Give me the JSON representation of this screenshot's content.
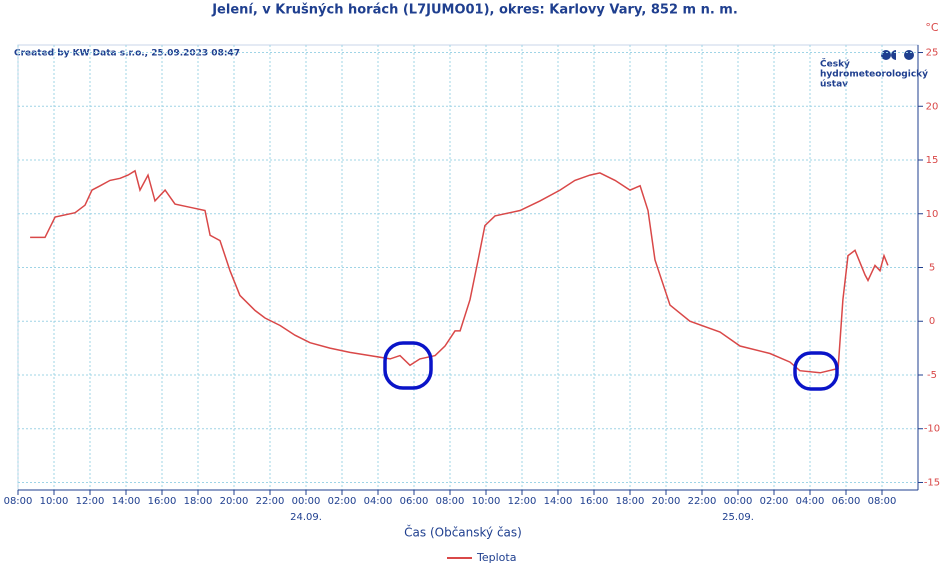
{
  "chart_data": {
    "type": "line",
    "title": "Jelení, v Krušných horách (L7JUMO01), okres: Karlovy Vary, 852 m n. m.",
    "y_unit": "°C",
    "created_by": "Created by KW Data s.r.o., 25.09.2023 08:47",
    "logo_lines": [
      "Český",
      "hydrometeorologický",
      "ústav"
    ],
    "x_label": "Čas (Občanský čas)",
    "xlim": [
      0,
      50
    ],
    "xticks": [
      {
        "value": 0,
        "label": "08:00"
      },
      {
        "value": 2,
        "label": "10:00"
      },
      {
        "value": 4,
        "label": "12:00"
      },
      {
        "value": 6,
        "label": "14:00"
      },
      {
        "value": 8,
        "label": "16:00"
      },
      {
        "value": 10,
        "label": "18:00"
      },
      {
        "value": 12,
        "label": "20:00"
      },
      {
        "value": 14,
        "label": "22:00"
      },
      {
        "value": 16,
        "label": "00:00"
      },
      {
        "value": 18,
        "label": "02:00"
      },
      {
        "value": 20,
        "label": "04:00"
      },
      {
        "value": 22,
        "label": "06:00"
      },
      {
        "value": 24,
        "label": "08:00"
      },
      {
        "value": 26,
        "label": "10:00"
      },
      {
        "value": 28,
        "label": "12:00"
      },
      {
        "value": 30,
        "label": "14:00"
      },
      {
        "value": 32,
        "label": "16:00"
      },
      {
        "value": 34,
        "label": "18:00"
      },
      {
        "value": 36,
        "label": "20:00"
      },
      {
        "value": 38,
        "label": "22:00"
      },
      {
        "value": 40,
        "label": "00:00"
      },
      {
        "value": 42,
        "label": "02:00"
      },
      {
        "value": 44,
        "label": "04:00"
      },
      {
        "value": 46,
        "label": "06:00"
      },
      {
        "value": 48,
        "label": "08:00"
      }
    ],
    "date_labels": [
      {
        "value": 16,
        "label": "24.09."
      },
      {
        "value": 40,
        "label": "25.09."
      }
    ],
    "ylim": [
      -15.7,
      25.7
    ],
    "yticks": [
      -15,
      -10,
      -5,
      0,
      5,
      10,
      15,
      20,
      25
    ],
    "grid": true,
    "x": [
      0.67,
      1.5,
      2.06,
      3.17,
      3.72,
      4.11,
      4.56,
      5.11,
      5.67,
      6.11,
      6.5,
      6.78,
      7.22,
      7.61,
      8.17,
      8.72,
      9.56,
      10.39,
      10.67,
      11.22,
      11.78,
      12.33,
      13.17,
      13.72,
      14.56,
      15.39,
      16.22,
      17.33,
      18.44,
      19.56,
      20.67,
      21.22,
      21.78,
      22.33,
      23.17,
      23.72,
      24.28,
      24.56,
      25.11,
      25.56,
      25.94,
      26.5,
      27.89,
      29,
      30.11,
      30.94,
      31.78,
      32.33,
      33.17,
      34,
      34.56,
      35,
      35.39,
      36.22,
      37.33,
      39,
      40.11,
      41.78,
      42.89,
      43.44,
      44.56,
      45.56,
      45.83,
      46.11,
      46.5,
      47.06,
      47.22,
      47.61,
      47.89,
      48.11,
      48.33
    ],
    "series": [
      {
        "name": "Teplota",
        "color": "#d94848",
        "values": [
          7.8,
          7.8,
          9.7,
          10.1,
          10.8,
          12.2,
          12.6,
          13.1,
          13.3,
          13.6,
          14.0,
          12.2,
          13.6,
          11.2,
          12.2,
          10.9,
          10.6,
          10.3,
          8.0,
          7.5,
          4.7,
          2.4,
          1.0,
          0.3,
          -0.4,
          -1.3,
          -2.0,
          -2.5,
          -2.9,
          -3.2,
          -3.5,
          -3.2,
          -4.1,
          -3.5,
          -3.2,
          -2.3,
          -0.9,
          -0.9,
          2.0,
          5.7,
          8.9,
          9.8,
          10.3,
          11.2,
          12.2,
          13.1,
          13.6,
          13.8,
          13.1,
          12.2,
          12.6,
          10.3,
          5.7,
          1.5,
          0.0,
          -1.0,
          -2.3,
          -3.0,
          -3.8,
          -4.6,
          -4.8,
          -4.4,
          2.0,
          6.1,
          6.6,
          4.3,
          3.8,
          5.2,
          4.7,
          6.1,
          5.2
        ]
      }
    ],
    "legend": "bottom"
  }
}
